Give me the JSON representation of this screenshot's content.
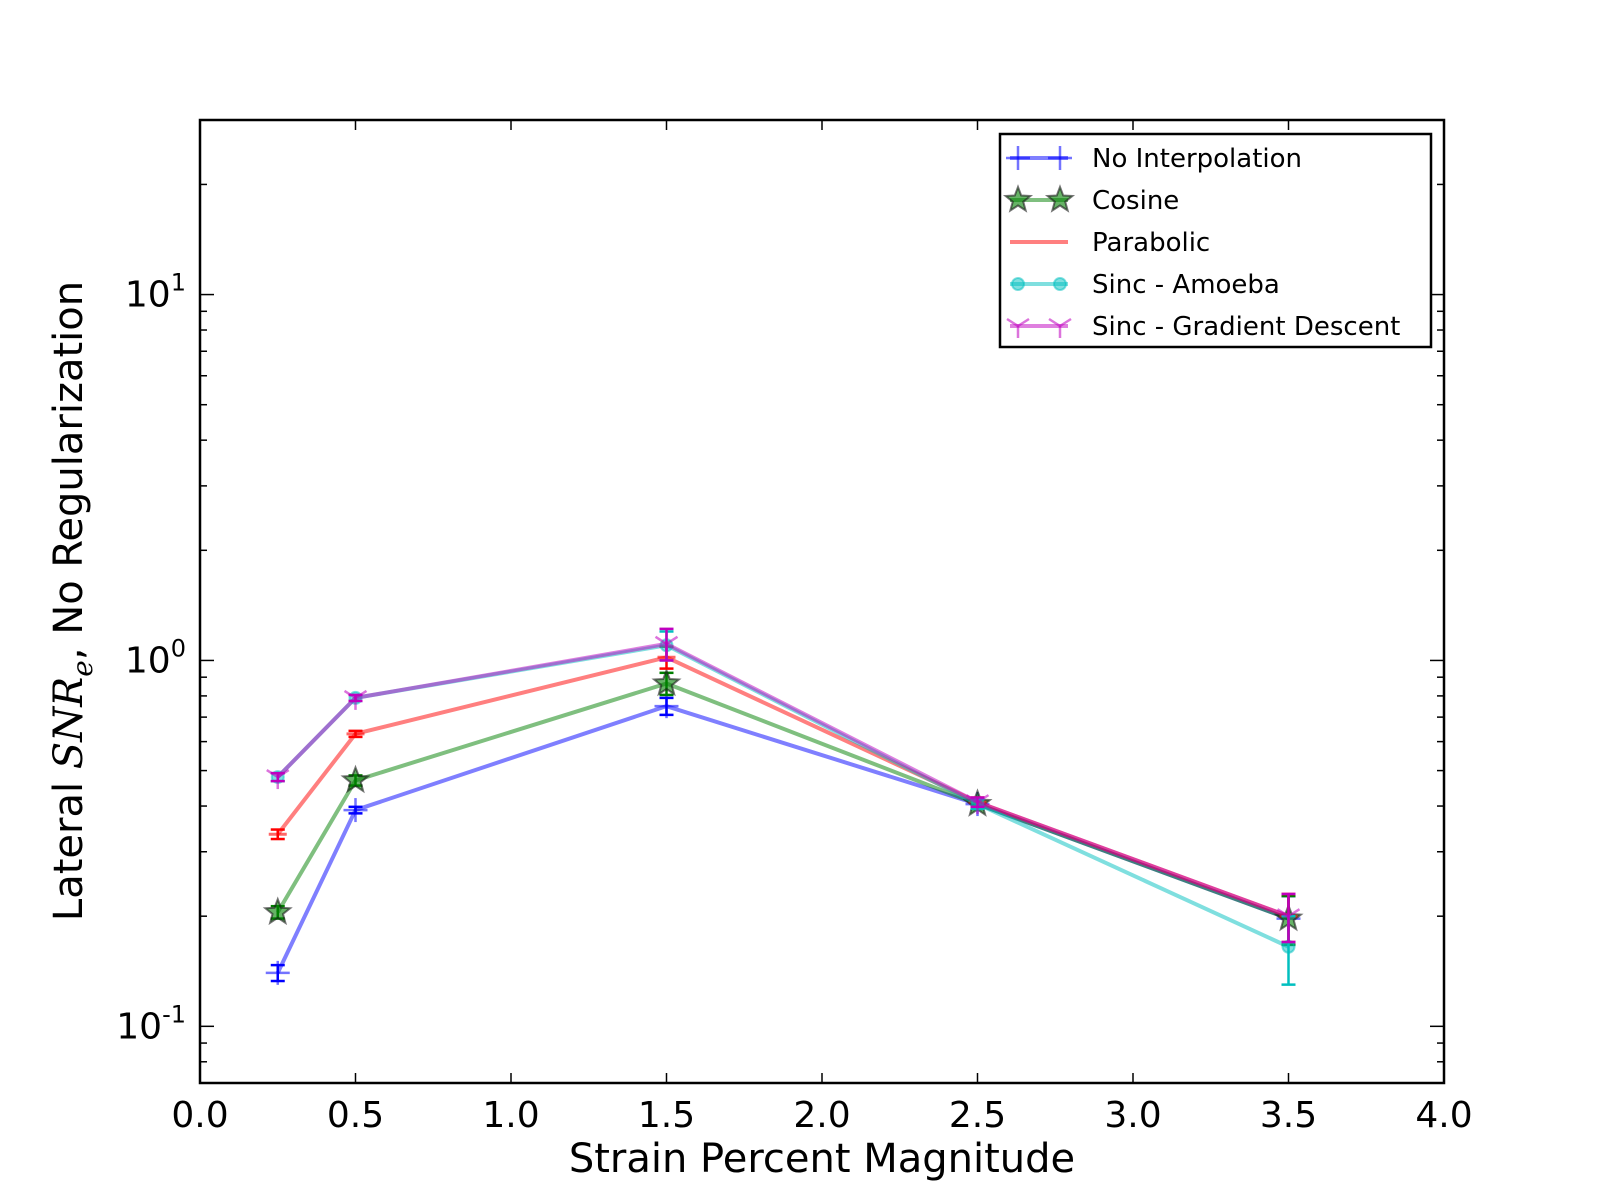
{
  "chart_data": {
    "type": "line",
    "xlabel": "Strain Percent Magnitude",
    "ylabel": "Lateral SNR_e, No Regularization",
    "ylabel_parts": {
      "prefix": "Lateral ",
      "math": "SNR",
      "sub": "e",
      "suffix": ", No Regularization"
    },
    "xlim": [
      0.0,
      4.0
    ],
    "ylim": [
      0.07,
      30
    ],
    "yscale": "log",
    "xticks": [
      "0.0",
      "0.5",
      "1.0",
      "1.5",
      "2.0",
      "2.5",
      "3.0",
      "3.5",
      "4.0"
    ],
    "xtick_values": [
      0.0,
      0.5,
      1.0,
      1.5,
      2.0,
      2.5,
      3.0,
      3.5,
      4.0
    ],
    "yticks": [
      {
        "value": 0.1,
        "base": "10",
        "exp": "-1"
      },
      {
        "value": 1,
        "base": "10",
        "exp": "0"
      },
      {
        "value": 10,
        "base": "10",
        "exp": "1"
      }
    ],
    "legend_position": "upper-right",
    "grid": false,
    "x": [
      0.25,
      0.5,
      1.5,
      2.5,
      3.5
    ],
    "series": [
      {
        "name": "No Interpolation",
        "color": "#0000ff",
        "marker": "plus",
        "values": [
          0.14,
          0.39,
          0.75,
          0.405,
          0.197
        ],
        "errors": [
          0.007,
          0.008,
          0.04,
          0.012,
          0.03
        ]
      },
      {
        "name": "Cosine",
        "color": "#008000",
        "marker": "star",
        "values": [
          0.205,
          0.47,
          0.865,
          0.405,
          0.197
        ],
        "errors": [
          0.008,
          0.015,
          0.06,
          0.012,
          0.03
        ]
      },
      {
        "name": "Parabolic",
        "color": "#ff0000",
        "marker": "hline",
        "values": [
          0.335,
          0.63,
          1.02,
          0.41,
          0.2
        ],
        "errors": [
          0.01,
          0.012,
          0.07,
          0.012,
          0.03
        ]
      },
      {
        "name": "Sinc - Amoeba",
        "color": "#00bfbf",
        "marker": "circle",
        "values": [
          0.48,
          0.79,
          1.1,
          0.405,
          0.165
        ],
        "errors": [
          0.012,
          0.015,
          0.1,
          0.012,
          0.035
        ]
      },
      {
        "name": "Sinc - Gradient Descent",
        "color": "#bf00bf",
        "marker": "tri",
        "values": [
          0.48,
          0.79,
          1.11,
          0.41,
          0.2
        ],
        "errors": [
          0.012,
          0.015,
          0.11,
          0.012,
          0.03
        ]
      }
    ]
  }
}
